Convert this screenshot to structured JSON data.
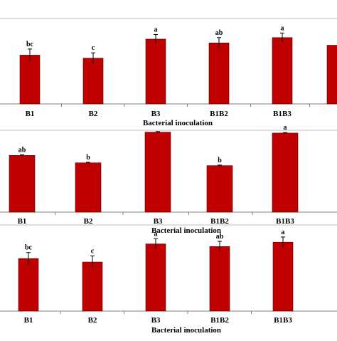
{
  "chart_data": [
    {
      "type": "bar",
      "categories": [
        "B1",
        "B2",
        "B3",
        "B1B2",
        "B1B3",
        ""
      ],
      "values": [
        3.2,
        3.0,
        4.25,
        4.0,
        4.35,
        3.85
      ],
      "errors": [
        0.4,
        0.35,
        0.3,
        0.35,
        0.3,
        0
      ],
      "labels": [
        "bc",
        "c",
        "a",
        "ab",
        "a",
        ""
      ],
      "xlabel": "Bacterial inoculation",
      "ylim": [
        0,
        5.6
      ],
      "grid": false,
      "bar_color": "#c00000"
    },
    {
      "type": "bar",
      "categories": [
        "B1",
        "B2",
        "B3",
        "B1B2",
        "B1B3"
      ],
      "values": [
        3.05,
        2.65,
        4.3,
        2.5,
        4.25
      ],
      "errors": [
        0.03,
        0.03,
        0.03,
        0.03,
        0.03
      ],
      "labels": [
        "ab",
        "b",
        "",
        "b",
        "a"
      ],
      "xlabel": "Bacterial inoculation",
      "ylim": [
        0,
        4.4
      ],
      "grid": false,
      "bar_color": "#c00000"
    },
    {
      "type": "bar",
      "categories": [
        "B1",
        "B2",
        "B3",
        "B1B2",
        "B1B3"
      ],
      "values": [
        3.05,
        2.85,
        3.9,
        3.75,
        4.0
      ],
      "errors": [
        0.35,
        0.35,
        0.3,
        0.3,
        0.3
      ],
      "labels": [
        "bc",
        "c",
        "a",
        "ab",
        "a"
      ],
      "xlabel": "Bacterial inoculation",
      "ylim": [
        0,
        5.0
      ],
      "grid": false,
      "bar_color": "#c00000"
    }
  ]
}
